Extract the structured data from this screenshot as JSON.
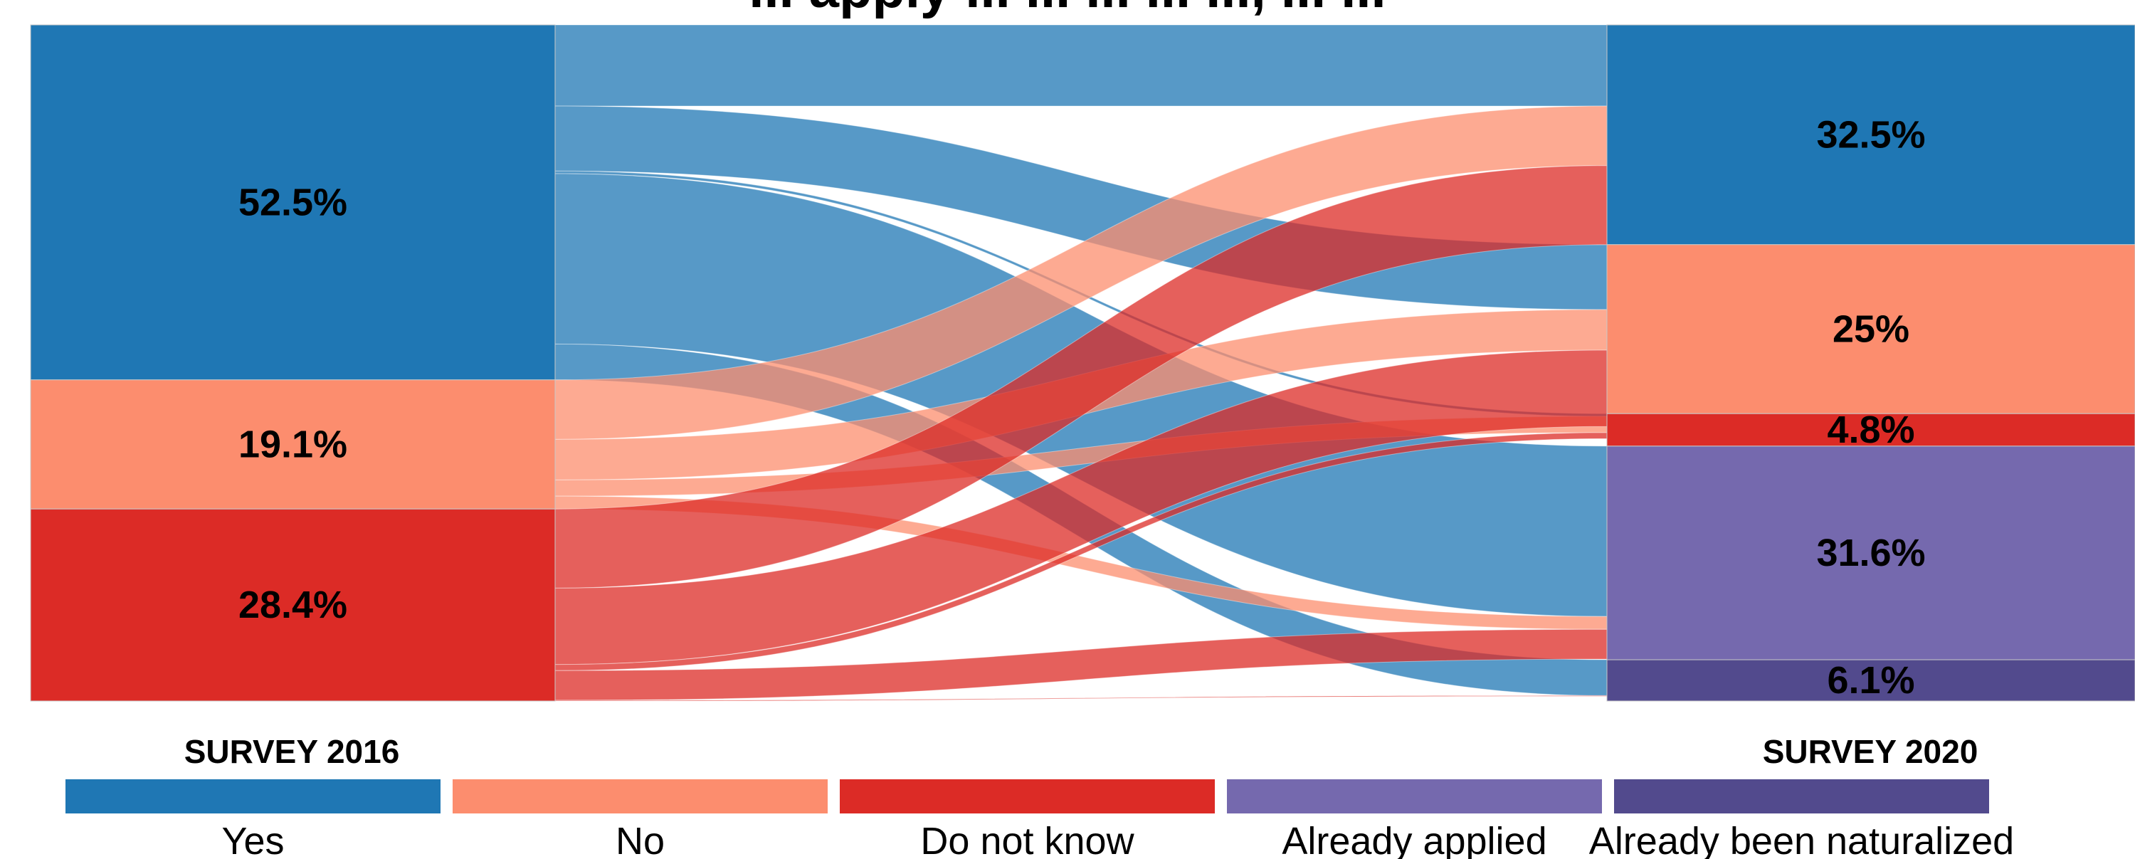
{
  "chart_data": {
    "type": "sankey",
    "title": "... apply ... ... ... ... ..., ... ...",
    "left_axis_label": "SURVEY 2016",
    "right_axis_label": "SURVEY 2020",
    "colors": {
      "Yes": "#1f77b4",
      "No": "#fc8d6e",
      "Do not know": "#dc2b26",
      "Already applied": "#7569ae",
      "Already been naturalized": "#524a8d"
    },
    "left_nodes": [
      {
        "name": "Yes",
        "value": 52.5,
        "label": "52.5%"
      },
      {
        "name": "No",
        "value": 19.1,
        "label": "19.1%"
      },
      {
        "name": "Do not know",
        "value": 28.4,
        "label": "28.4%"
      }
    ],
    "right_nodes": [
      {
        "name": "Yes",
        "value": 32.5,
        "label": "32.5%"
      },
      {
        "name": "No",
        "value": 25,
        "label": "25%"
      },
      {
        "name": "Do not know",
        "value": 4.8,
        "label": "4.8%"
      },
      {
        "name": "Already applied",
        "value": 31.6,
        "label": "31.6%"
      },
      {
        "name": "Already been naturalized",
        "value": 6.1,
        "label": "6.1%"
      }
    ],
    "flows": [
      {
        "source": "Yes",
        "target": "Yes",
        "value": 12.0
      },
      {
        "source": "Yes",
        "target": "No",
        "value": 9.6
      },
      {
        "source": "Yes",
        "target": "Do not know",
        "value": 0.4
      },
      {
        "source": "Yes",
        "target": "Already applied",
        "value": 25.2
      },
      {
        "source": "Yes",
        "target": "Already been naturalized",
        "value": 5.3
      },
      {
        "source": "No",
        "target": "Yes",
        "value": 8.8
      },
      {
        "source": "No",
        "target": "No",
        "value": 6.0
      },
      {
        "source": "No",
        "target": "Do not know",
        "value": 2.4
      },
      {
        "source": "No",
        "target": "Already applied",
        "value": 1.9
      },
      {
        "source": "Do not know",
        "target": "Yes",
        "value": 11.7
      },
      {
        "source": "Do not know",
        "target": "No",
        "value": 11.3
      },
      {
        "source": "Do not know",
        "target": "Do not know",
        "value": 0.9
      },
      {
        "source": "Do not know",
        "target": "Already applied",
        "value": 4.4
      },
      {
        "source": "Do not know",
        "target": "Already been naturalized",
        "value": 0.1
      }
    ]
  }
}
